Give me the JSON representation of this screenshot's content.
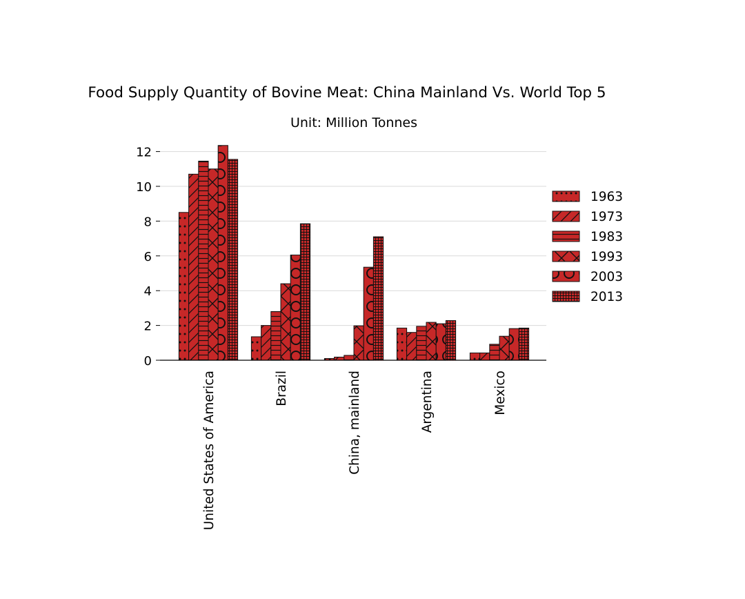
{
  "chart_data": {
    "type": "bar",
    "title": "Food Supply Quantity of Bovine Meat: China Mainland Vs. World Top 5",
    "subtitle": "Unit: Million Tonnes",
    "xlabel": "",
    "ylabel": "",
    "ylim": [
      0,
      12.4
    ],
    "yticks": [
      0,
      2,
      4,
      6,
      8,
      10,
      12
    ],
    "grid": "horizontal",
    "legend_position": "right",
    "bar_color": "#c62828",
    "categories": [
      "United States of America",
      "Brazil",
      "China, mainland",
      "Argentina",
      "Mexico"
    ],
    "series": [
      {
        "name": "1963",
        "pattern": "dots",
        "values": [
          8.5,
          1.35,
          0.1,
          1.85,
          0.42
        ]
      },
      {
        "name": "1973",
        "pattern": "diagonal",
        "values": [
          10.7,
          2.0,
          0.18,
          1.6,
          0.42
        ]
      },
      {
        "name": "1983",
        "pattern": "horizontal",
        "values": [
          11.45,
          2.8,
          0.28,
          1.95,
          0.92
        ]
      },
      {
        "name": "1993",
        "pattern": "crosshatch",
        "values": [
          11.0,
          4.4,
          1.98,
          2.18,
          1.38
        ]
      },
      {
        "name": "2003",
        "pattern": "circles",
        "values": [
          12.35,
          6.05,
          5.35,
          2.1,
          1.82
        ]
      },
      {
        "name": "2013",
        "pattern": "grid",
        "values": [
          11.55,
          7.85,
          7.1,
          2.28,
          1.85
        ]
      }
    ]
  }
}
